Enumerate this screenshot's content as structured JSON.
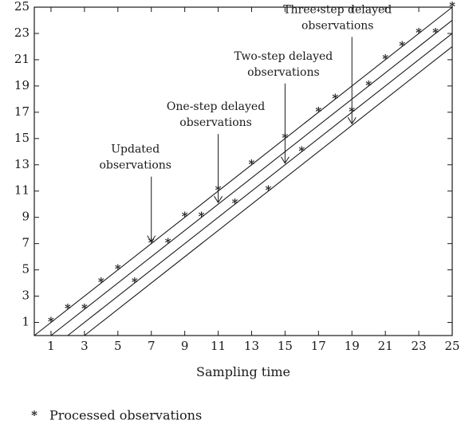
{
  "chart_data": {
    "type": "line",
    "title": "",
    "xlabel": "Sampling time",
    "ylabel": "",
    "xlim": [
      0,
      25
    ],
    "ylim": [
      0,
      25
    ],
    "x_ticks": [
      1,
      3,
      5,
      7,
      9,
      11,
      13,
      15,
      17,
      19,
      21,
      23,
      25
    ],
    "y_ticks": [
      1,
      3,
      5,
      7,
      9,
      11,
      13,
      15,
      17,
      19,
      21,
      23,
      25
    ],
    "grid": false,
    "lines": [
      {
        "x": [
          0,
          25
        ],
        "y": [
          0,
          25
        ]
      },
      {
        "x": [
          2,
          25
        ],
        "y": [
          0,
          23
        ]
      },
      {
        "x": [
          3,
          25
        ],
        "y": [
          0,
          22
        ]
      },
      {
        "x": [
          1,
          25
        ],
        "y": [
          0,
          24
        ]
      }
    ],
    "series": [
      {
        "name": "Processed observations",
        "marker": "*",
        "x": [
          1,
          2,
          3,
          4,
          5,
          6,
          7,
          8,
          9,
          10,
          11,
          12,
          13,
          14,
          15,
          16,
          17,
          18,
          19,
          20,
          21,
          22,
          23,
          24,
          25
        ],
        "y": [
          1,
          2,
          2,
          4,
          5,
          4,
          7,
          7,
          9,
          9,
          11,
          10,
          13,
          11,
          15,
          14,
          17,
          18,
          17,
          19,
          21,
          22,
          23,
          23,
          25
        ]
      }
    ],
    "annotations": [
      {
        "lines": [
          "Updated",
          "observations"
        ],
        "target": [
          7,
          7
        ]
      },
      {
        "lines": [
          "One-step delayed",
          "observations"
        ],
        "target": [
          11,
          10
        ]
      },
      {
        "lines": [
          "Two-step delayed",
          "observations"
        ],
        "target": [
          15,
          13
        ]
      },
      {
        "lines": [
          "Three-step delayed",
          "observations"
        ],
        "target": [
          19,
          16
        ]
      }
    ],
    "legend": {
      "position": "bottom-left",
      "marker": "*",
      "label": "Processed observations"
    }
  }
}
